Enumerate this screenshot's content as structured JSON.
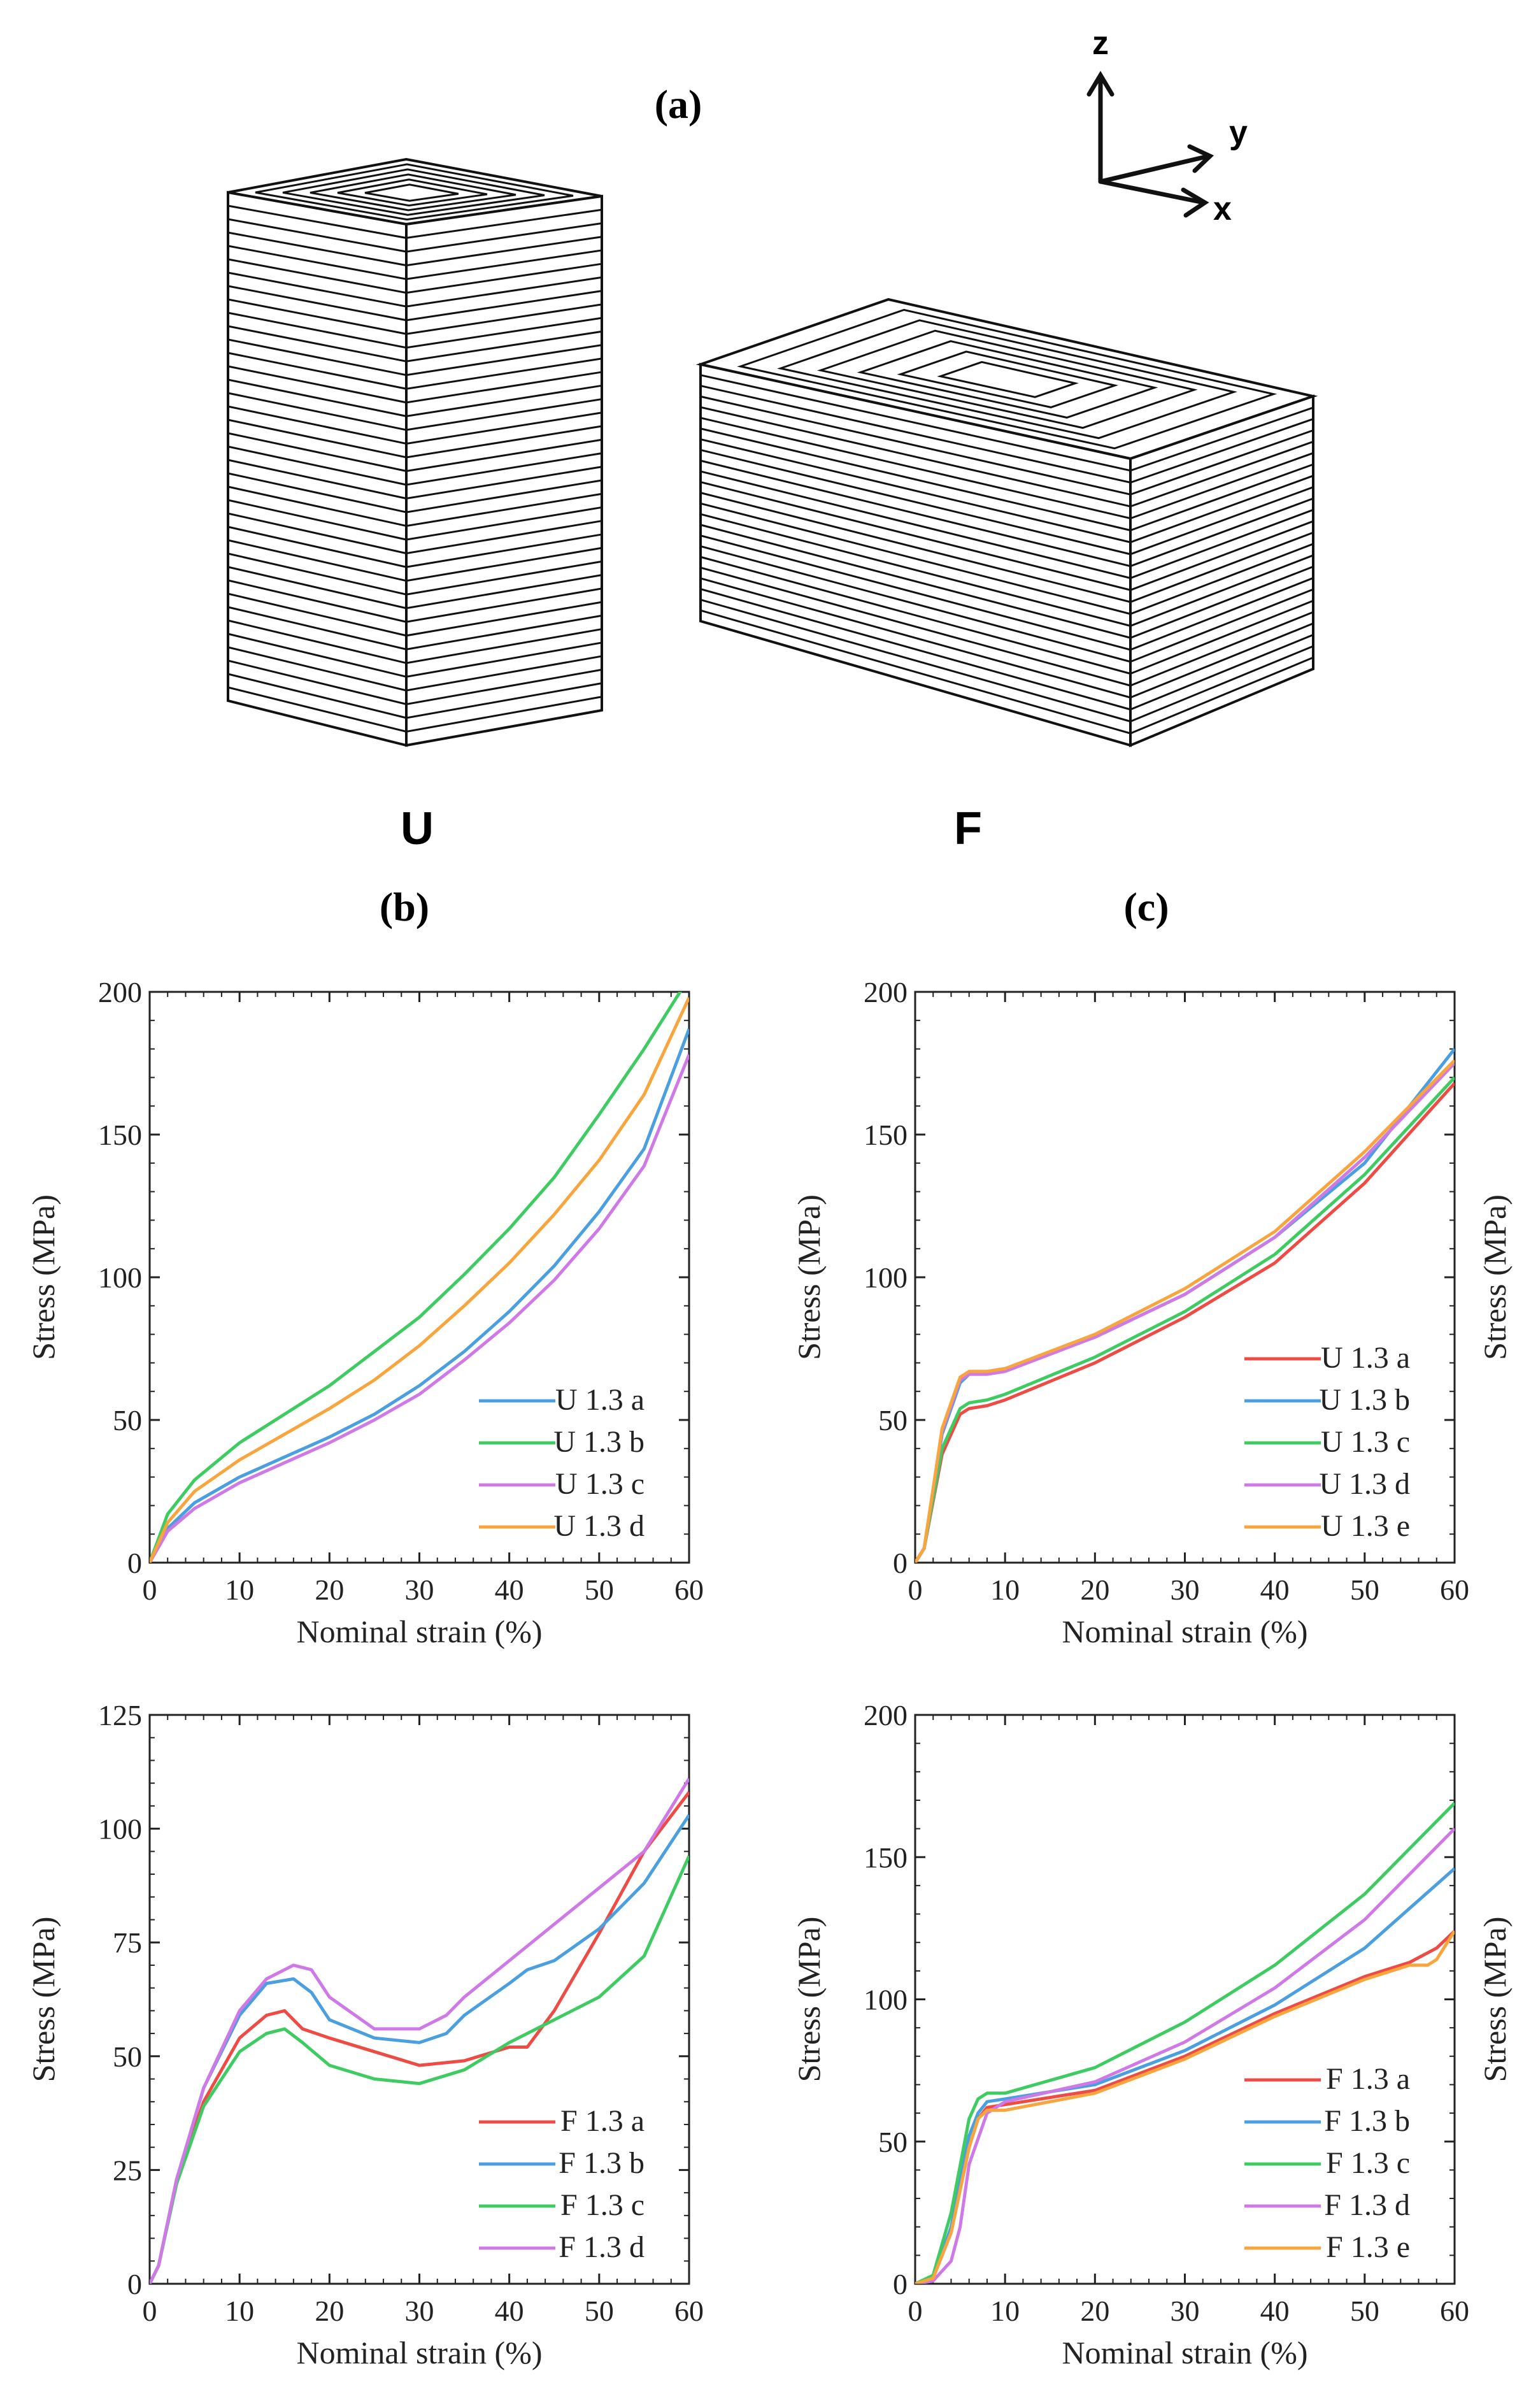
{
  "figure": {
    "panel_a_label": "(a)",
    "panel_b_label": "(b)",
    "panel_c_label": "(c)",
    "sample_u_label": "U",
    "sample_f_label": "F",
    "axes_triad": {
      "z": "z",
      "y": "y",
      "x": "x"
    },
    "y_axis_side_label": "Stress (MPa)"
  },
  "colors": {
    "a": "#ee4b45",
    "b": "#4a9fe0",
    "c": "#3ecc62",
    "d": "#cf79e6",
    "e": "#f7a53c",
    "axis": "#222222"
  },
  "chart_data": [
    {
      "type": "line",
      "panel": "b-top",
      "title": "",
      "xlabel": "Nominal strain (%)",
      "ylabel": "Stress (MPa)",
      "xlim": [
        0,
        60
      ],
      "ylim": [
        0,
        200
      ],
      "xticks": [
        0,
        10,
        20,
        30,
        40,
        50,
        60
      ],
      "yticks": [
        0,
        50,
        100,
        150,
        200
      ],
      "legend_position": "lower-right",
      "series": [
        {
          "name": "U 1.3 a",
          "color": "#4a9fe0",
          "x": [
            0,
            2,
            5,
            10,
            15,
            20,
            25,
            30,
            35,
            40,
            45,
            50,
            55,
            60
          ],
          "y": [
            0,
            12,
            21,
            30,
            37,
            44,
            52,
            62,
            74,
            88,
            104,
            123,
            145,
            187
          ]
        },
        {
          "name": "U 1.3 b",
          "color": "#3ecc62",
          "x": [
            0,
            2,
            5,
            10,
            15,
            20,
            25,
            30,
            35,
            40,
            45,
            50,
            55,
            60
          ],
          "y": [
            0,
            17,
            29,
            42,
            52,
            62,
            74,
            86,
            101,
            117,
            135,
            157,
            180,
            205
          ]
        },
        {
          "name": "U 1.3 c",
          "color": "#cf79e6",
          "x": [
            0,
            2,
            5,
            10,
            15,
            20,
            25,
            30,
            35,
            40,
            45,
            50,
            55,
            60
          ],
          "y": [
            0,
            11,
            19,
            28,
            35,
            42,
            50,
            59,
            71,
            84,
            99,
            117,
            139,
            178
          ]
        },
        {
          "name": "U 1.3 d",
          "color": "#f7a53c",
          "x": [
            0,
            2,
            5,
            10,
            15,
            20,
            25,
            30,
            35,
            40,
            45,
            50,
            55,
            60
          ],
          "y": [
            0,
            14,
            25,
            36,
            45,
            54,
            64,
            76,
            90,
            105,
            122,
            141,
            164,
            198
          ]
        }
      ]
    },
    {
      "type": "line",
      "panel": "b-bottom",
      "title": "",
      "xlabel": "Nominal strain (%)",
      "ylabel": "Stress (MPa)",
      "xlim": [
        0,
        60
      ],
      "ylim": [
        0,
        125
      ],
      "xticks": [
        0,
        10,
        20,
        30,
        40,
        50,
        60
      ],
      "yticks": [
        0,
        25,
        50,
        75,
        100,
        125
      ],
      "legend_position": "lower-right",
      "series": [
        {
          "name": "F 1.3 a",
          "color": "#ee4b45",
          "x": [
            0,
            1,
            3,
            6,
            10,
            13,
            15,
            17,
            20,
            25,
            30,
            35,
            40,
            42,
            45,
            50,
            55,
            60
          ],
          "y": [
            0,
            4,
            23,
            40,
            54,
            59,
            60,
            56,
            54,
            51,
            48,
            49,
            52,
            52,
            60,
            77,
            95,
            108
          ]
        },
        {
          "name": "F 1.3 b",
          "color": "#4a9fe0",
          "x": [
            0,
            1,
            3,
            6,
            10,
            13,
            16,
            18,
            20,
            25,
            30,
            33,
            35,
            40,
            42,
            45,
            50,
            55,
            60
          ],
          "y": [
            0,
            4,
            23,
            43,
            59,
            66,
            67,
            64,
            58,
            54,
            53,
            55,
            59,
            66,
            69,
            71,
            78,
            88,
            103
          ]
        },
        {
          "name": "F 1.3 c",
          "color": "#3ecc62",
          "x": [
            0,
            1,
            3,
            6,
            10,
            13,
            15,
            17,
            20,
            25,
            30,
            35,
            40,
            45,
            50,
            55,
            60
          ],
          "y": [
            0,
            4,
            22,
            39,
            51,
            55,
            56,
            53,
            48,
            45,
            44,
            47,
            53,
            58,
            63,
            72,
            94
          ]
        },
        {
          "name": "F 1.3 d",
          "color": "#cf79e6",
          "x": [
            0,
            1,
            3,
            6,
            10,
            13,
            16,
            18,
            20,
            25,
            30,
            33,
            35,
            40,
            45,
            50,
            55,
            60
          ],
          "y": [
            0,
            4,
            23,
            43,
            60,
            67,
            70,
            69,
            63,
            56,
            56,
            59,
            63,
            71,
            79,
            87,
            95,
            111
          ]
        }
      ]
    },
    {
      "type": "line",
      "panel": "c-top",
      "title": "",
      "xlabel": "Nominal strain (%)",
      "ylabel": "Stress (MPa)",
      "xlim": [
        0,
        60
      ],
      "ylim": [
        0,
        200
      ],
      "xticks": [
        0,
        10,
        20,
        30,
        40,
        50,
        60
      ],
      "yticks": [
        0,
        50,
        100,
        150,
        200
      ],
      "legend_position": "lower-right",
      "series": [
        {
          "name": "U 1.3 a",
          "color": "#ee4b45",
          "x": [
            0,
            1,
            3,
            5,
            6,
            8,
            10,
            20,
            30,
            40,
            50,
            60
          ],
          "y": [
            0,
            5,
            38,
            52,
            54,
            55,
            57,
            70,
            86,
            105,
            133,
            168
          ]
        },
        {
          "name": "U 1.3 b",
          "color": "#4a9fe0",
          "x": [
            0,
            1,
            3,
            5,
            6,
            8,
            10,
            20,
            30,
            40,
            50,
            60
          ],
          "y": [
            0,
            5,
            45,
            63,
            66,
            67,
            68,
            79,
            94,
            114,
            140,
            180
          ]
        },
        {
          "name": "U 1.3 c",
          "color": "#3ecc62",
          "x": [
            0,
            1,
            3,
            5,
            6,
            8,
            10,
            20,
            30,
            40,
            50,
            60
          ],
          "y": [
            0,
            5,
            40,
            54,
            56,
            57,
            59,
            72,
            88,
            108,
            136,
            170
          ]
        },
        {
          "name": "U 1.3 d",
          "color": "#cf79e6",
          "x": [
            0,
            1,
            3,
            5,
            6,
            8,
            10,
            20,
            30,
            40,
            50,
            60
          ],
          "y": [
            0,
            5,
            46,
            64,
            66,
            66,
            67,
            79,
            94,
            114,
            142,
            175
          ]
        },
        {
          "name": "U 1.3 e",
          "color": "#f7a53c",
          "x": [
            0,
            1,
            3,
            5,
            6,
            8,
            10,
            20,
            30,
            40,
            50,
            60
          ],
          "y": [
            0,
            5,
            47,
            65,
            67,
            67,
            68,
            80,
            96,
            116,
            144,
            176
          ]
        }
      ]
    },
    {
      "type": "line",
      "panel": "c-bottom",
      "title": "",
      "xlabel": "Nominal strain (%)",
      "ylabel": "Stress (MPa)",
      "xlim": [
        0,
        60
      ],
      "ylim": [
        0,
        200
      ],
      "xticks": [
        0,
        10,
        20,
        30,
        40,
        50,
        60
      ],
      "yticks": [
        0,
        50,
        100,
        150,
        200
      ],
      "legend_position": "lower-right",
      "series": [
        {
          "name": "F 1.3 a",
          "color": "#ee4b45",
          "x": [
            0,
            2,
            4,
            6,
            7,
            8,
            10,
            20,
            30,
            40,
            50,
            55,
            58,
            60
          ],
          "y": [
            0,
            2,
            18,
            48,
            58,
            62,
            63,
            68,
            80,
            95,
            108,
            113,
            118,
            124
          ]
        },
        {
          "name": "F 1.3 b",
          "color": "#4a9fe0",
          "x": [
            0,
            2,
            4,
            6,
            7,
            8,
            10,
            20,
            30,
            40,
            50,
            60
          ],
          "y": [
            0,
            2,
            20,
            52,
            60,
            64,
            65,
            70,
            82,
            98,
            118,
            146
          ]
        },
        {
          "name": "F 1.3 c",
          "color": "#3ecc62",
          "x": [
            0,
            2,
            4,
            6,
            7,
            8,
            10,
            20,
            30,
            40,
            50,
            60
          ],
          "y": [
            0,
            3,
            25,
            58,
            65,
            67,
            67,
            76,
            92,
            112,
            137,
            169
          ]
        },
        {
          "name": "F 1.3 d",
          "color": "#cf79e6",
          "x": [
            0,
            2,
            4,
            5,
            6,
            8,
            10,
            20,
            30,
            40,
            50,
            60
          ],
          "y": [
            0,
            1,
            8,
            20,
            42,
            60,
            64,
            71,
            85,
            104,
            128,
            160
          ]
        },
        {
          "name": "F 1.3 e",
          "color": "#f7a53c",
          "x": [
            0,
            2,
            4,
            6,
            7,
            8,
            10,
            20,
            30,
            40,
            50,
            55,
            57,
            58,
            60
          ],
          "y": [
            0,
            2,
            18,
            48,
            58,
            61,
            61,
            67,
            79,
            94,
            107,
            112,
            112,
            114,
            124
          ]
        }
      ]
    }
  ]
}
